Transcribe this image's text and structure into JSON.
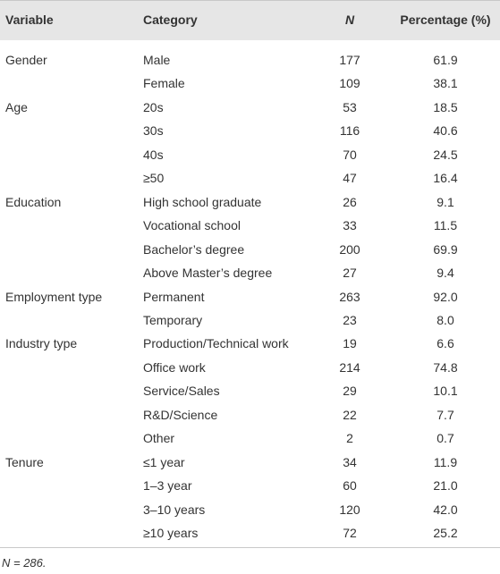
{
  "table": {
    "header": [
      "Variable",
      "Category",
      "N",
      "Percentage (%)"
    ],
    "groups": [
      {
        "variable": "Gender",
        "rows": [
          [
            "Male",
            177,
            "61.9"
          ],
          [
            "Female",
            109,
            "38.1"
          ]
        ]
      },
      {
        "variable": "Age",
        "rows": [
          [
            "20s",
            53,
            "18.5"
          ],
          [
            "30s",
            116,
            "40.6"
          ],
          [
            "40s",
            70,
            "24.5"
          ],
          [
            "≥50",
            47,
            "16.4"
          ]
        ]
      },
      {
        "variable": "Education",
        "rows": [
          [
            "High school graduate",
            26,
            "9.1"
          ],
          [
            "Vocational school",
            33,
            "11.5"
          ],
          [
            "Bachelor’s degree",
            200,
            "69.9"
          ],
          [
            "Above Master’s degree",
            27,
            "9.4"
          ]
        ]
      },
      {
        "variable": "Employment type",
        "rows": [
          [
            "Permanent",
            263,
            "92.0"
          ],
          [
            "Temporary",
            23,
            "8.0"
          ]
        ]
      },
      {
        "variable": "Industry type",
        "rows": [
          [
            "Production/Technical work",
            19,
            "6.6"
          ],
          [
            "Office work",
            214,
            "74.8"
          ],
          [
            "Service/Sales",
            29,
            "10.1"
          ],
          [
            "R&D/Science",
            22,
            "7.7"
          ],
          [
            "Other",
            2,
            "0.7"
          ]
        ]
      },
      {
        "variable": "Tenure",
        "rows": [
          [
            "≤1 year",
            34,
            "11.9"
          ],
          [
            "1–3 year",
            60,
            "21.0"
          ],
          [
            "3–10 years",
            120,
            "42.0"
          ],
          [
            "≥10 years",
            72,
            "25.2"
          ]
        ]
      }
    ],
    "footnote": "N = 286."
  }
}
